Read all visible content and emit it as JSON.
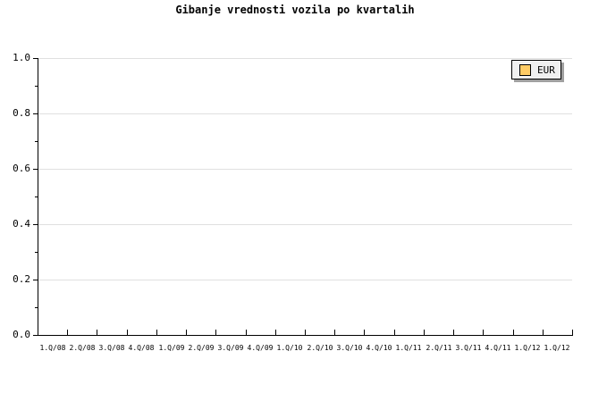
{
  "title": "Gibanje vrednosti vozila po kvartalih",
  "legend": {
    "label": "EUR",
    "swatch_color": "#ffcc66"
  },
  "colors": {
    "background": "#ffffff",
    "axis": "#000000",
    "grid": "#e0e0e0",
    "text": "#000000",
    "legend_bg": "#f0f0f0",
    "legend_border": "#000000",
    "legend_shadow": "#a0a0a0"
  },
  "chart_data": {
    "type": "line",
    "title": "Gibanje vrednosti vozila po kvartalih",
    "categories": [
      "1.Q/08",
      "2.Q/08",
      "3.Q/08",
      "4.Q/08",
      "1.Q/09",
      "2.Q/09",
      "3.Q/09",
      "4.Q/09",
      "1.Q/10",
      "2.Q/10",
      "3.Q/10",
      "4.Q/10",
      "1.Q/11",
      "2.Q/11",
      "3.Q/11",
      "4.Q/11",
      "1.Q/12",
      "1.Q/12"
    ],
    "series": [
      {
        "name": "EUR",
        "color": "#ffcc66",
        "values": []
      }
    ],
    "xlabel": "",
    "ylabel": "",
    "ylim": [
      0.0,
      1.0
    ],
    "y_major_ticks": [
      1.0,
      0.8,
      0.6,
      0.4,
      0.2,
      0.0
    ],
    "y_tick_labels": [
      "1.0",
      "0.8",
      "0.6",
      "0.4",
      "0.2",
      "0.0"
    ],
    "y_minor_tick_interval": 0.1,
    "grid": "horizontal",
    "legend_position": "top-right"
  }
}
